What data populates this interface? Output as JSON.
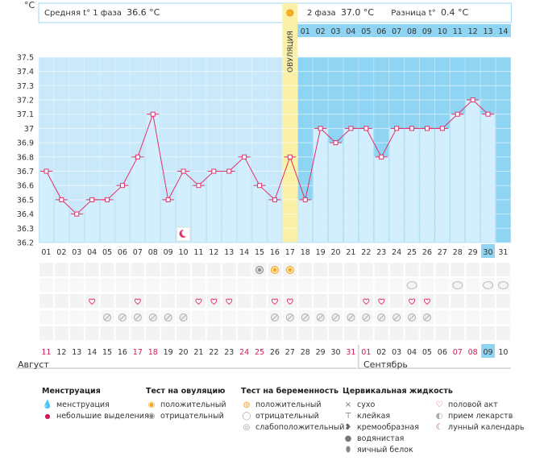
{
  "header": {
    "unit": "°C",
    "phase1_label": "Средняя t° 1 фаза",
    "phase1_value": "36.6 °C",
    "phase2_label": "2 фаза",
    "phase2_value": "37.0 °C",
    "diff_label": "Разница t°",
    "diff_value": "0.4 °C"
  },
  "ovulation_label": "ОВУЛЯЦИЯ",
  "colors": {
    "phase1_bg": "#c9e9fa",
    "phase2_bg": "#8fd4f3",
    "bar": "#d3effd",
    "bar_border": "#b5dff4",
    "ovulation": "#fbf0a8",
    "line": "#e0306a",
    "highlight": "#8fd4f3",
    "red_day": "#d2185b"
  },
  "chart_data": {
    "type": "line",
    "x": [
      "01",
      "02",
      "03",
      "04",
      "05",
      "06",
      "07",
      "08",
      "09",
      "10",
      "11",
      "12",
      "13",
      "14",
      "15",
      "16",
      "17",
      "18",
      "19",
      "20",
      "21",
      "22",
      "23",
      "24",
      "25",
      "26",
      "27",
      "28",
      "29",
      "30",
      "31"
    ],
    "values": [
      36.7,
      36.5,
      36.4,
      36.5,
      36.5,
      36.6,
      36.8,
      37.1,
      36.5,
      36.7,
      36.6,
      36.7,
      36.7,
      36.8,
      36.6,
      36.5,
      36.8,
      36.5,
      37.0,
      36.9,
      37.0,
      37.0,
      36.8,
      37.0,
      37.0,
      37.0,
      37.0,
      37.1,
      37.2,
      37.1,
      null
    ],
    "yticks": [
      "36.2",
      "36.3",
      "36.4",
      "36.5",
      "36.6",
      "36.7",
      "36.8",
      "36.9",
      "37",
      "37.1",
      "37.2",
      "37.3",
      "37.4",
      "37.5"
    ],
    "ylim": [
      36.2,
      37.5
    ],
    "ovulation_day_index": 16,
    "phase2_days": [
      "01",
      "02",
      "03",
      "04",
      "05",
      "06",
      "07",
      "08",
      "09",
      "10",
      "11",
      "12",
      "13",
      "14"
    ],
    "highlight_day_index": 29,
    "calendar_days": [
      "11",
      "12",
      "13",
      "14",
      "15",
      "16",
      "17",
      "18",
      "19",
      "20",
      "21",
      "22",
      "23",
      "24",
      "25",
      "26",
      "27",
      "28",
      "29",
      "30",
      "31",
      "01",
      "02",
      "03",
      "04",
      "05",
      "06",
      "07",
      "08",
      "09",
      "10"
    ],
    "calendar_red_indices": [
      0,
      6,
      7,
      13,
      14,
      20,
      21,
      27,
      28
    ],
    "month_start": "Август",
    "month_end": "Сентябрь",
    "month_split_index": 21
  },
  "marks": {
    "ovulation_test_positive": [
      15,
      16
    ],
    "ovulation_test_negative": [
      14
    ],
    "pregnancy_test": [
      24,
      27,
      29,
      30
    ],
    "intercourse": [
      3,
      6,
      10,
      11,
      12,
      15,
      16,
      21,
      22,
      24,
      25
    ],
    "medication": [
      4,
      5,
      6,
      7,
      8,
      9,
      15,
      16,
      17,
      18,
      19,
      20,
      21,
      22,
      23,
      24,
      25
    ],
    "lunar_calendar": [
      9
    ]
  },
  "legend": {
    "menstruation": {
      "title": "Менструация",
      "items": [
        "менструация",
        "небольшие выделения"
      ]
    },
    "ovulation_test": {
      "title": "Тест на овуляцию",
      "items": [
        "положительный",
        "отрицательный"
      ]
    },
    "pregnancy_test": {
      "title": "Тест на беременность",
      "items": [
        "положительный",
        "отрицательный",
        "слабоположительный"
      ]
    },
    "cervical_fluid": {
      "title": "Цервикальная жидкость",
      "items": [
        "сухо",
        "клейкая",
        "кремообразная",
        "водянистая",
        "яичный белок"
      ]
    },
    "other": {
      "items": [
        "половой акт",
        "прием лекарств",
        "лунный календарь"
      ]
    }
  }
}
